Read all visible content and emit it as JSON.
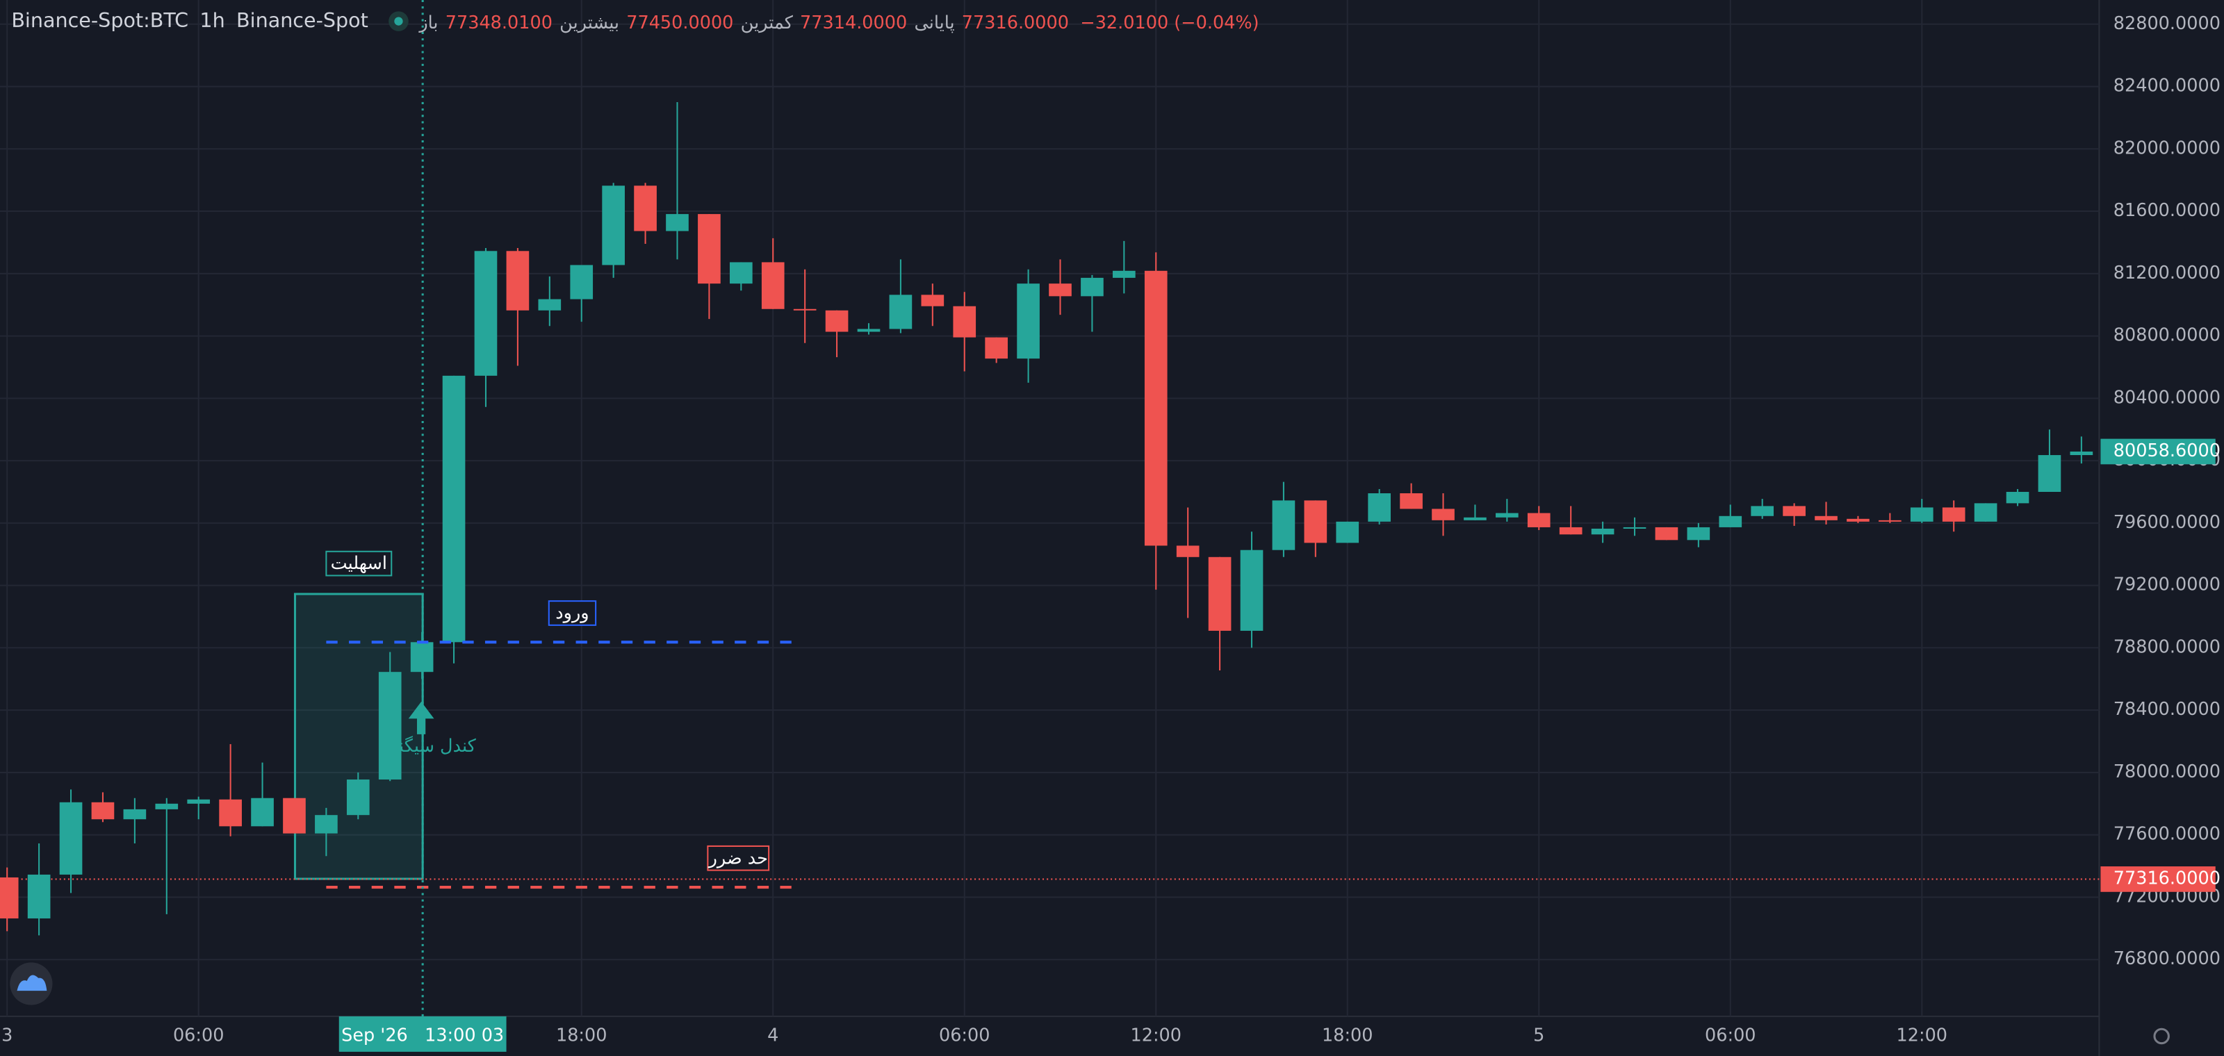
{
  "chart_data": {
    "type": "candlestick",
    "title": "Binance-Spot:BTC",
    "interval": "1h",
    "exchange": "Binance-Spot",
    "legend": [
      {
        "label": "باز",
        "value": "77348.0100"
      },
      {
        "label": "بیشترین",
        "value": "77450.0000"
      },
      {
        "label": "کمترین",
        "value": "77314.0000"
      },
      {
        "label": "پایانی",
        "value": "77316.0000"
      }
    ],
    "change": "−32.0100 (−0.04%)",
    "up_color": "#26a69a",
    "down_color": "#ef5350",
    "categories": [
      "3",
      null,
      null,
      null,
      null,
      null,
      "06:00",
      null,
      null,
      null,
      null,
      null,
      null,
      null,
      null,
      null,
      null,
      null,
      "18:00",
      null,
      null,
      null,
      null,
      null,
      "4",
      null,
      null,
      null,
      null,
      null,
      "06:00",
      null,
      null,
      null,
      null,
      null,
      "12:00",
      null,
      null,
      null,
      null,
      null,
      "18:00",
      null,
      null,
      null,
      null,
      null,
      "5",
      null,
      null,
      null,
      null,
      null,
      "06:00",
      null,
      null,
      null,
      null,
      null,
      "12:00",
      null,
      null,
      null,
      null,
      null
    ],
    "open": [
      77327,
      77064,
      77345,
      77809,
      77700,
      77764,
      77800,
      77827,
      77655,
      77836,
      77609,
      77727,
      77955,
      78645,
      78836,
      80545,
      81345,
      80964,
      81036,
      81255,
      81764,
      81473,
      81582,
      81136,
      81273,
      80973,
      80964,
      80827,
      80845,
      81064,
      80991,
      80791,
      80655,
      81136,
      81055,
      81173,
      81218,
      79455,
      79382,
      78909,
      79427,
      79745,
      79473,
      79609,
      79791,
      79691,
      79618,
      79636,
      79664,
      79573,
      79527,
      79564,
      79573,
      79491,
      79573,
      79645,
      79709,
      79645,
      79627,
      79618,
      79609,
      79700,
      79609,
      79727,
      79800,
      80036
    ],
    "high": [
      77391,
      77545,
      77891,
      77873,
      77836,
      77836,
      77845,
      78182,
      78064,
      77836,
      77773,
      78000,
      78773,
      78900,
      80545,
      81364,
      81364,
      81182,
      81255,
      81782,
      81782,
      82300,
      81582,
      81273,
      81427,
      81227,
      80964,
      80882,
      81291,
      81136,
      81082,
      80791,
      81227,
      81291,
      81191,
      81409,
      81336,
      79700,
      79382,
      79545,
      79864,
      79745,
      79609,
      79818,
      79855,
      79791,
      79718,
      79755,
      79709,
      79709,
      79609,
      79636,
      79573,
      79600,
      79718,
      79755,
      79727,
      79736,
      79645,
      79664,
      79755,
      79745,
      79727,
      79818,
      80200,
      80155
    ],
    "low": [
      76982,
      76955,
      77227,
      77682,
      77545,
      77091,
      77700,
      77591,
      77655,
      77609,
      77464,
      77700,
      77945,
      78600,
      78700,
      80345,
      80609,
      80864,
      80891,
      81173,
      81391,
      81291,
      80909,
      81091,
      80973,
      80755,
      80664,
      80809,
      80818,
      80864,
      80573,
      80627,
      80500,
      80936,
      80827,
      81073,
      79173,
      78991,
      78655,
      78800,
      79382,
      79382,
      79473,
      79591,
      79691,
      79518,
      79618,
      79609,
      79555,
      79527,
      79473,
      79518,
      79491,
      79445,
      79573,
      79627,
      79582,
      79591,
      79600,
      79600,
      79600,
      79545,
      79609,
      79709,
      79800,
      79982
    ],
    "close": [
      77064,
      77345,
      77809,
      77700,
      77764,
      77800,
      77827,
      77655,
      77836,
      77609,
      77727,
      77955,
      78645,
      78836,
      80545,
      81345,
      80964,
      81036,
      81255,
      81764,
      81473,
      81582,
      81136,
      81273,
      80973,
      80964,
      80827,
      80845,
      81064,
      80991,
      80791,
      80655,
      81136,
      81055,
      81173,
      81218,
      79455,
      79382,
      78909,
      79427,
      79745,
      79473,
      79609,
      79791,
      79691,
      79618,
      79636,
      79664,
      79573,
      79527,
      79564,
      79573,
      79491,
      79573,
      79645,
      79709,
      79645,
      79618,
      79609,
      79609,
      79700,
      79609,
      79727,
      79800,
      80036,
      80058.6
    ],
    "ylim": [
      76436,
      82955
    ],
    "yticks": [
      {
        "value": 82800,
        "label": "82800.0000"
      },
      {
        "value": 82400,
        "label": "82400.0000"
      },
      {
        "value": 82000,
        "label": "82000.0000"
      },
      {
        "value": 81600,
        "label": "81600.0000"
      },
      {
        "value": 81200,
        "label": "81200.0000"
      },
      {
        "value": 80800,
        "label": "80800.0000"
      },
      {
        "value": 80400,
        "label": "80400.0000"
      },
      {
        "value": 80000,
        "label": "80000.0000"
      },
      {
        "value": 79600,
        "label": "79600.0000"
      },
      {
        "value": 79200,
        "label": "79200.0000"
      },
      {
        "value": 78800,
        "label": "78800.0000"
      },
      {
        "value": 78400,
        "label": "78400.0000"
      },
      {
        "value": 78000,
        "label": "78000.0000"
      },
      {
        "value": 77600,
        "label": "77600.0000"
      },
      {
        "value": 77200,
        "label": "77200.0000"
      },
      {
        "value": 76800,
        "label": "76800.0000"
      }
    ],
    "grid": true,
    "crosshair_label": "Sep '26   13:00 03",
    "last_price": {
      "value": 80058.6,
      "label": "80058.6000"
    },
    "price_line": {
      "value": 77316,
      "label": "77316.0000"
    },
    "zone": {
      "label": "اسهلیت",
      "top": 79145,
      "bottom": 77318
    },
    "entry": {
      "label": "ورود",
      "value": 78836
    },
    "stop": {
      "label": "حد ضرر",
      "value": 77264
    },
    "signal_label": "کندل سیگنال"
  }
}
